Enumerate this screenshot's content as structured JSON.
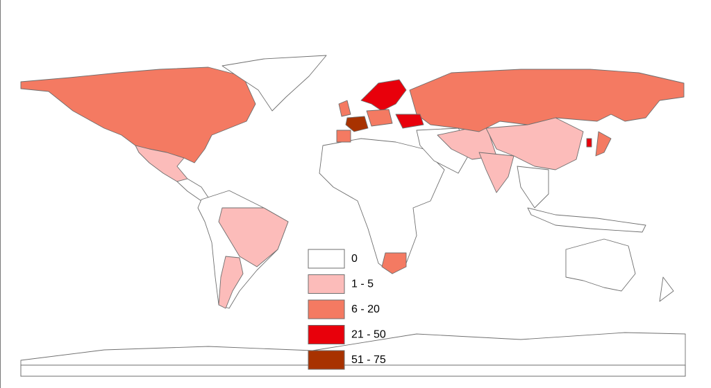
{
  "legend": {
    "items": [
      {
        "label": "0",
        "color": "#ffffff"
      },
      {
        "label": "1 - 5",
        "color": "#fcbcba"
      },
      {
        "label": "6 - 20",
        "color": "#f47a62"
      },
      {
        "label": "21 - 50",
        "color": "#e8000b"
      },
      {
        "label": "51 - 75",
        "color": "#a83200"
      }
    ]
  }
}
